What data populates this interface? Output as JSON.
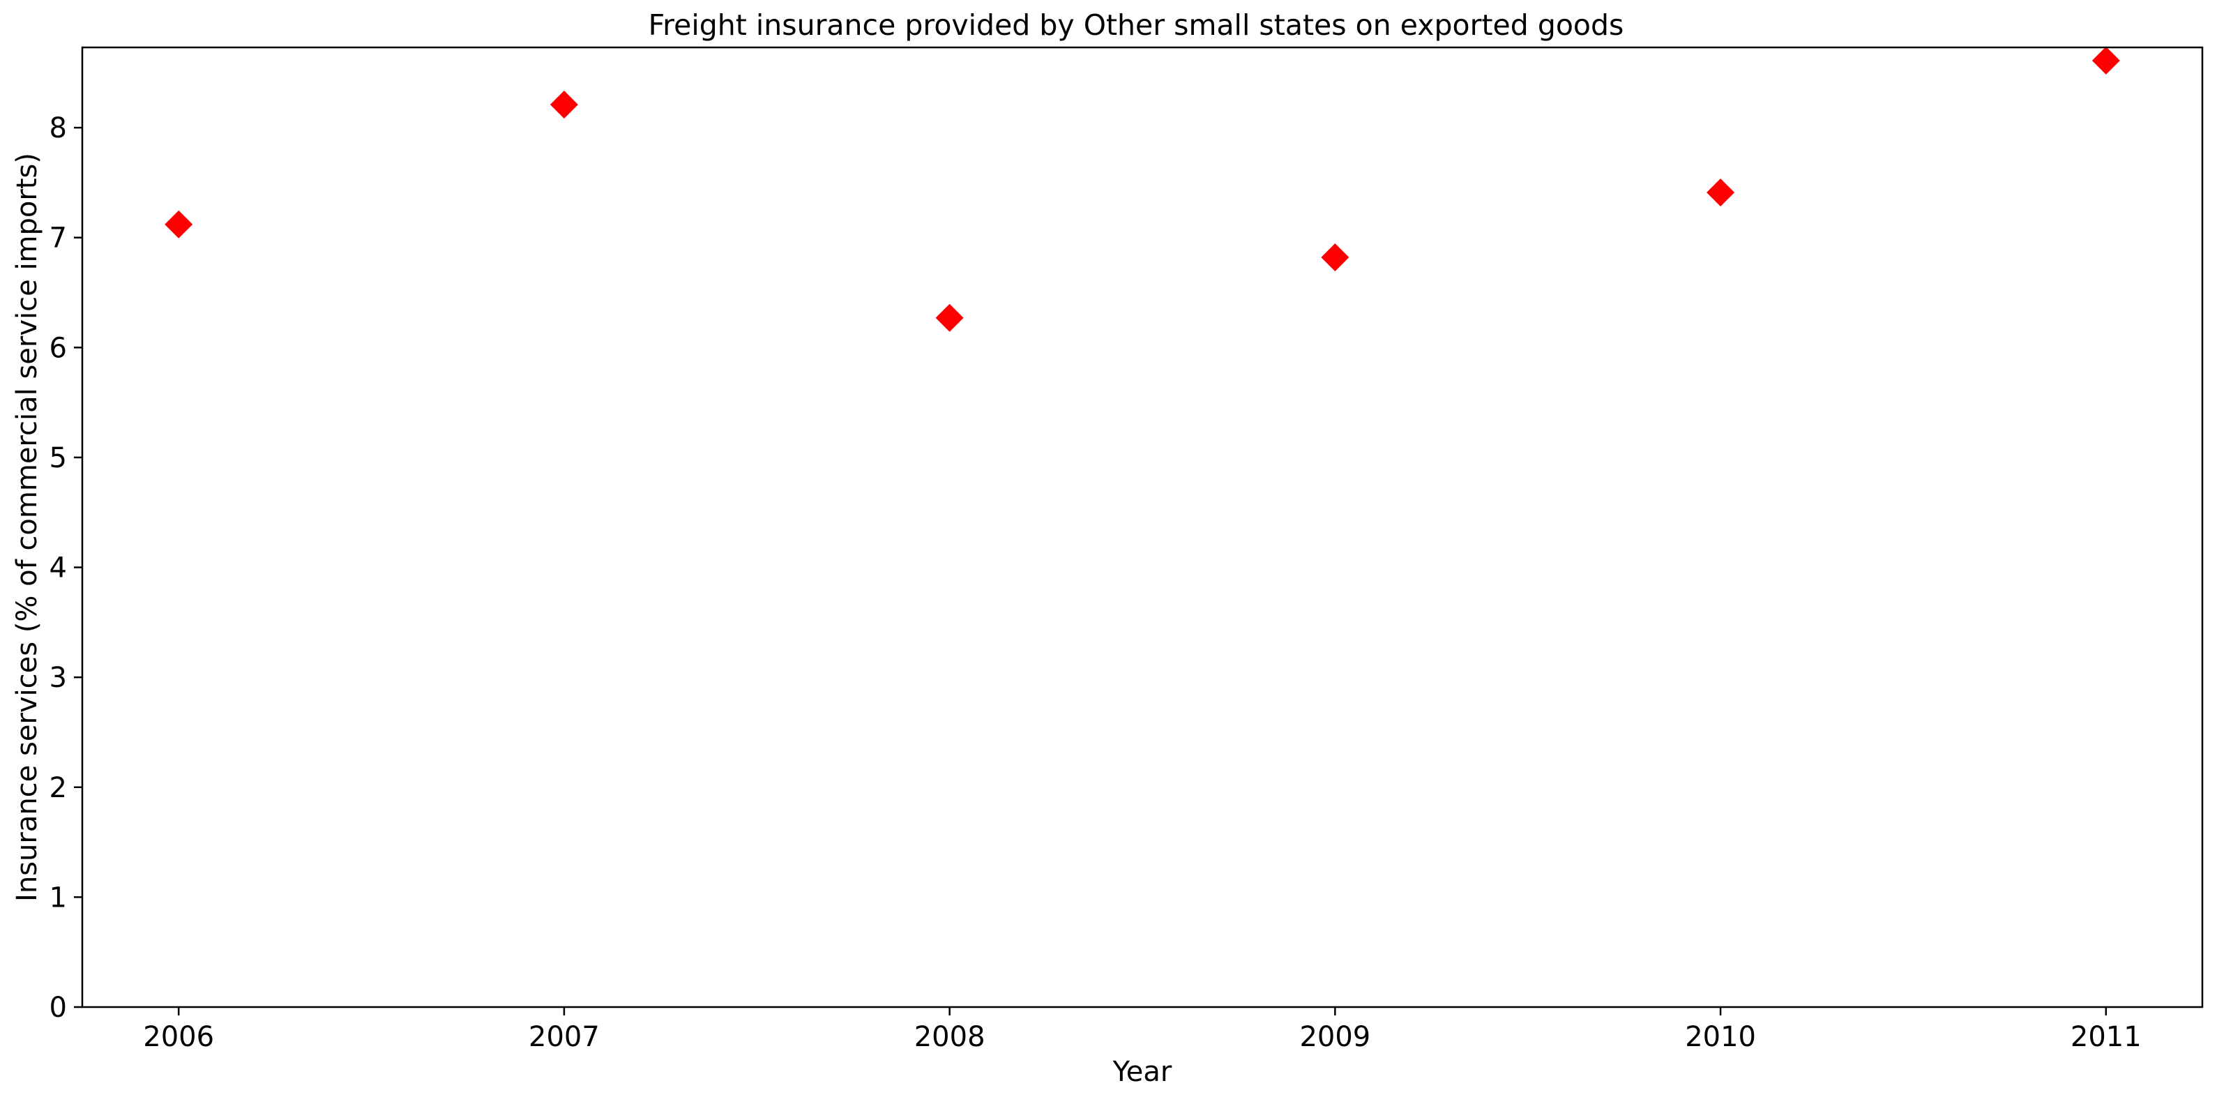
{
  "chart_data": {
    "type": "scatter",
    "title": "Freight insurance provided by Other small states on exported goods",
    "xlabel": "Year",
    "ylabel": "Insurance services (% of commercial service imports)",
    "x": [
      "2006",
      "2007",
      "2008",
      "2009",
      "2010",
      "2011"
    ],
    "series": [
      {
        "values": [
          7.12,
          8.21,
          6.27,
          6.82,
          7.41,
          8.61
        ],
        "marker": "diamond",
        "color": "#ff0000"
      }
    ],
    "yticks": [
      "0",
      "1",
      "2",
      "3",
      "4",
      "5",
      "6",
      "7",
      "8"
    ],
    "ylim": [
      0,
      8.73
    ],
    "xlim": [
      2005.75,
      2011.25
    ],
    "grid": false,
    "legend": "none"
  }
}
